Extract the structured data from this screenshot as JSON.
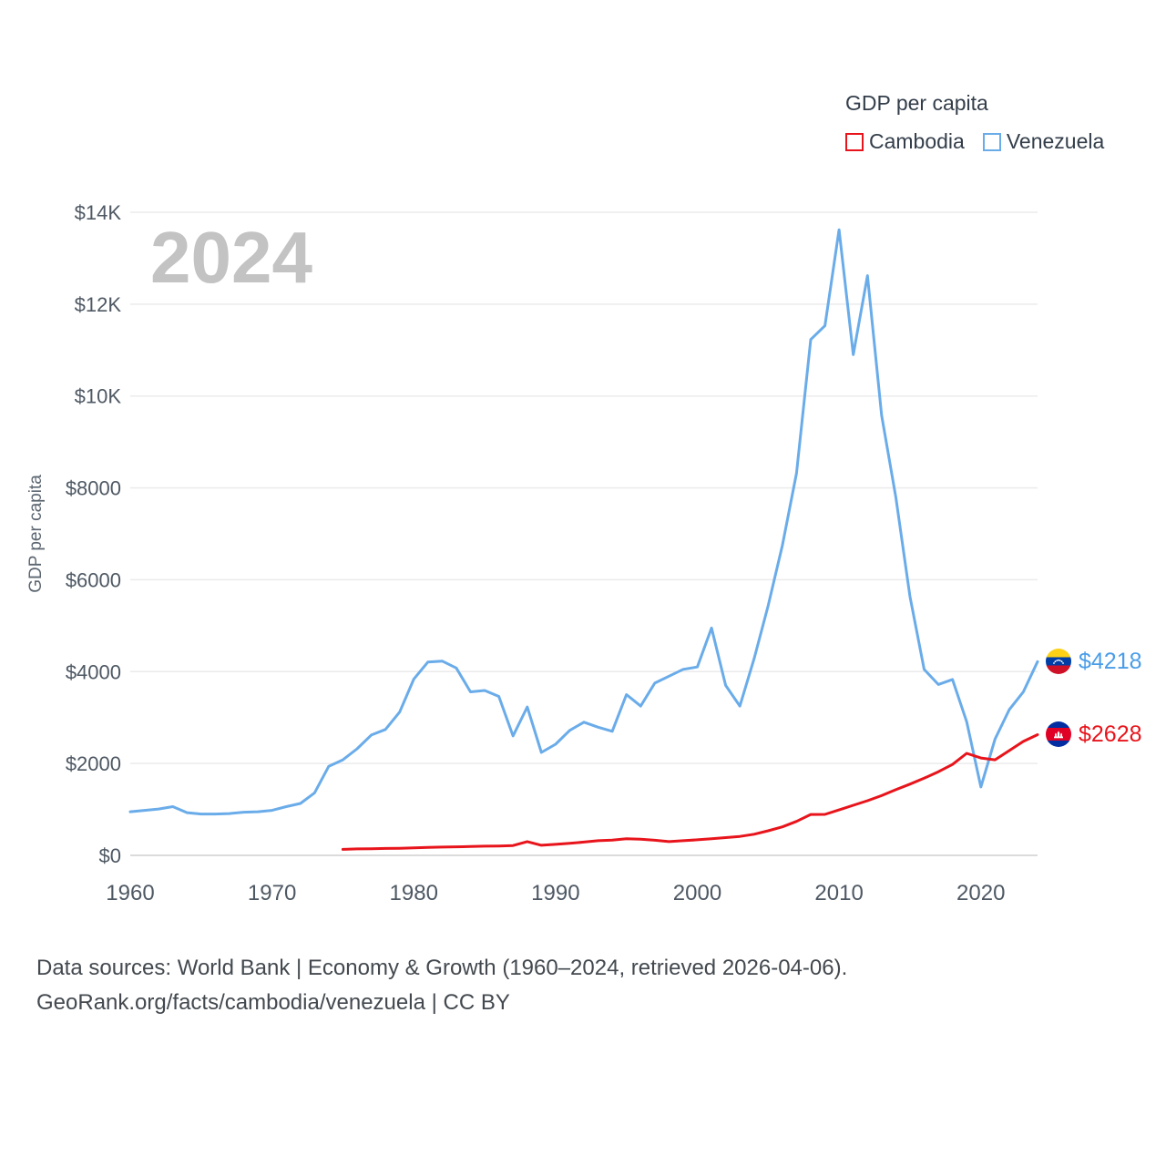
{
  "legend": {
    "title": "GDP per capita",
    "items": [
      {
        "label": "Cambodia",
        "color": "#e8141b"
      },
      {
        "label": "Venezuela",
        "color": "#6aace9"
      }
    ]
  },
  "watermark": "2024",
  "end_labels": [
    {
      "id": "venezuela",
      "series": "Venezuela",
      "text": "$4218",
      "color": "#4a9de8"
    },
    {
      "id": "cambodia",
      "series": "Cambodia",
      "text": "$2628",
      "color": "#e8141b"
    }
  ],
  "footer": {
    "line1": "Data sources: World Bank | Economy & Growth (1960–2024, retrieved 2026-04-06).",
    "line2": "GeoRank.org/facts/cambodia/venezuela | CC BY"
  },
  "chart_data": {
    "type": "line",
    "title": "GDP per capita",
    "xlabel": "",
    "ylabel": "GDP per capita",
    "xlim": [
      1960,
      2024
    ],
    "ylim": [
      0,
      14000
    ],
    "grid": "horizontal",
    "legend_position": "top-right",
    "x_ticks": [
      1960,
      1970,
      1980,
      1990,
      2000,
      2010,
      2020
    ],
    "y_ticks": [
      {
        "value": 0,
        "label": "$0"
      },
      {
        "value": 2000,
        "label": "$2000"
      },
      {
        "value": 4000,
        "label": "$4000"
      },
      {
        "value": 6000,
        "label": "$6000"
      },
      {
        "value": 8000,
        "label": "$8000"
      },
      {
        "value": 10000,
        "label": "$10K"
      },
      {
        "value": 12000,
        "label": "$12K"
      },
      {
        "value": 14000,
        "label": "$14K"
      }
    ],
    "series": [
      {
        "name": "Venezuela",
        "color": "#6aace9",
        "x": [
          1960,
          1961,
          1962,
          1963,
          1964,
          1965,
          1966,
          1967,
          1968,
          1969,
          1970,
          1971,
          1972,
          1973,
          1974,
          1975,
          1976,
          1977,
          1978,
          1979,
          1980,
          1981,
          1982,
          1983,
          1984,
          1985,
          1986,
          1987,
          1988,
          1989,
          1990,
          1991,
          1992,
          1993,
          1994,
          1995,
          1996,
          1997,
          1998,
          1999,
          2000,
          2001,
          2002,
          2003,
          2004,
          2005,
          2006,
          2007,
          2008,
          2009,
          2010,
          2011,
          2012,
          2013,
          2014,
          2015,
          2016,
          2017,
          2018,
          2019,
          2020,
          2021,
          2022,
          2023,
          2024
        ],
        "values": [
          950,
          980,
          1010,
          1060,
          930,
          900,
          900,
          910,
          940,
          950,
          980,
          1060,
          1130,
          1360,
          1940,
          2080,
          2320,
          2620,
          2740,
          3120,
          3840,
          4210,
          4230,
          4080,
          3560,
          3590,
          3460,
          2600,
          3230,
          2240,
          2420,
          2720,
          2900,
          2790,
          2700,
          3500,
          3250,
          3750,
          3900,
          4050,
          4100,
          4950,
          3700,
          3250,
          4280,
          5440,
          6750,
          8320,
          11230,
          11530,
          13620,
          10900,
          12620,
          9580,
          7800,
          5640,
          4050,
          3720,
          3830,
          2910,
          1490,
          2530,
          3170,
          3560,
          4218
        ]
      },
      {
        "name": "Cambodia",
        "color": "#e8141b",
        "x": [
          1975,
          1976,
          1977,
          1978,
          1979,
          1980,
          1981,
          1982,
          1983,
          1984,
          1985,
          1986,
          1987,
          1988,
          1989,
          1990,
          1991,
          1992,
          1993,
          1994,
          1995,
          1996,
          1997,
          1998,
          1999,
          2000,
          2001,
          2002,
          2003,
          2004,
          2005,
          2006,
          2007,
          2008,
          2009,
          2010,
          2011,
          2012,
          2013,
          2014,
          2015,
          2016,
          2017,
          2018,
          2019,
          2020,
          2021,
          2022,
          2023,
          2024
        ],
        "values": [
          130,
          140,
          145,
          150,
          155,
          165,
          172,
          180,
          186,
          193,
          200,
          205,
          215,
          300,
          220,
          240,
          262,
          290,
          320,
          332,
          360,
          352,
          330,
          300,
          320,
          340,
          362,
          386,
          412,
          460,
          535,
          620,
          740,
          890,
          892,
          990,
          1090,
          1190,
          1300,
          1430,
          1550,
          1680,
          1820,
          1980,
          2220,
          2120,
          2080,
          2280,
          2480,
          2628
        ]
      }
    ]
  }
}
